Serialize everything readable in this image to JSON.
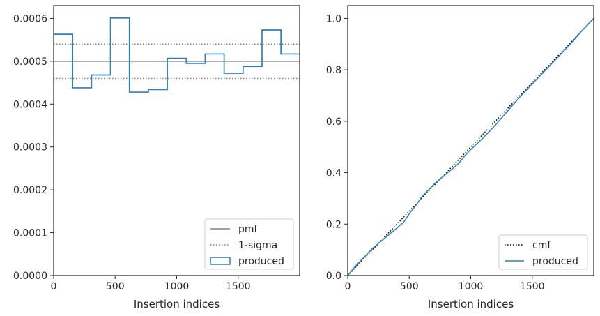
{
  "chart_data": [
    {
      "type": "line",
      "xlabel": "Insertion indices",
      "ylabel": "",
      "xlim": [
        0,
        2000
      ],
      "ylim": [
        0,
        0.00063
      ],
      "xticks": [
        0,
        500,
        1000,
        1500
      ],
      "xtick_labels": [
        "0",
        "500",
        "1000",
        "1500"
      ],
      "yticks": [
        0,
        0.0001,
        0.0002,
        0.0003,
        0.0004,
        0.0005,
        0.0006
      ],
      "ytick_labels": [
        "0.0000",
        "0.0001",
        "0.0002",
        "0.0003",
        "0.0004",
        "0.0005",
        "0.0006"
      ],
      "grid": false,
      "legend_placement": "lower-right",
      "legend": [
        "pmf",
        "1-sigma",
        "produced"
      ],
      "series": [
        {
          "name": "pmf",
          "style": "solid",
          "color": "#808080",
          "x": [
            0,
            2000
          ],
          "y": [
            0.0005,
            0.0005
          ]
        },
        {
          "name": "1-sigma",
          "style": "dotted",
          "color": "#808080",
          "x": [
            0,
            2000
          ],
          "y": [
            0.00054,
            0.00054
          ]
        },
        {
          "name": "1-sigma-lower",
          "style": "dotted",
          "color": "#808080",
          "x": [
            0,
            2000
          ],
          "y": [
            0.00046,
            0.00046
          ]
        },
        {
          "name": "produced",
          "style": "step",
          "color": "#2e7fb5",
          "bin_edges": [
            0,
            154,
            308,
            462,
            616,
            770,
            924,
            1078,
            1232,
            1386,
            1540,
            1694,
            1848,
            2000
          ],
          "values": [
            0.000563,
            0.000438,
            0.000468,
            0.000601,
            0.000428,
            0.000434,
            0.000507,
            0.000495,
            0.000517,
            0.000472,
            0.000488,
            0.000573,
            0.000517
          ]
        }
      ]
    },
    {
      "type": "line",
      "xlabel": "Insertion indices",
      "ylabel": "",
      "xlim": [
        0,
        2000
      ],
      "ylim": [
        0,
        1.05
      ],
      "xticks": [
        0,
        500,
        1000,
        1500
      ],
      "xtick_labels": [
        "0",
        "500",
        "1000",
        "1500"
      ],
      "yticks": [
        0,
        0.2,
        0.4,
        0.6,
        0.8,
        1.0
      ],
      "ytick_labels": [
        "0.0",
        "0.2",
        "0.4",
        "0.6",
        "0.8",
        "1.0"
      ],
      "grid": false,
      "legend_placement": "lower-right",
      "legend": [
        "cmf",
        "produced"
      ],
      "series": [
        {
          "name": "cmf",
          "style": "dotted",
          "color": "#000000",
          "x": [
            0,
            2000
          ],
          "y": [
            0,
            1
          ]
        },
        {
          "name": "produced",
          "style": "solid",
          "color": "#2e7fb5",
          "x": [
            0,
            50,
            100,
            150,
            200,
            250,
            300,
            350,
            400,
            450,
            500,
            550,
            600,
            650,
            700,
            750,
            800,
            850,
            900,
            950,
            1000,
            1100,
            1200,
            1300,
            1400,
            1500,
            1600,
            1700,
            1800,
            1900,
            2000
          ],
          "y": [
            0,
            0.03,
            0.055,
            0.08,
            0.105,
            0.125,
            0.145,
            0.165,
            0.185,
            0.205,
            0.24,
            0.27,
            0.305,
            0.33,
            0.355,
            0.375,
            0.395,
            0.415,
            0.435,
            0.465,
            0.49,
            0.535,
            0.585,
            0.64,
            0.695,
            0.745,
            0.795,
            0.845,
            0.895,
            0.95,
            1.0
          ]
        }
      ]
    }
  ]
}
